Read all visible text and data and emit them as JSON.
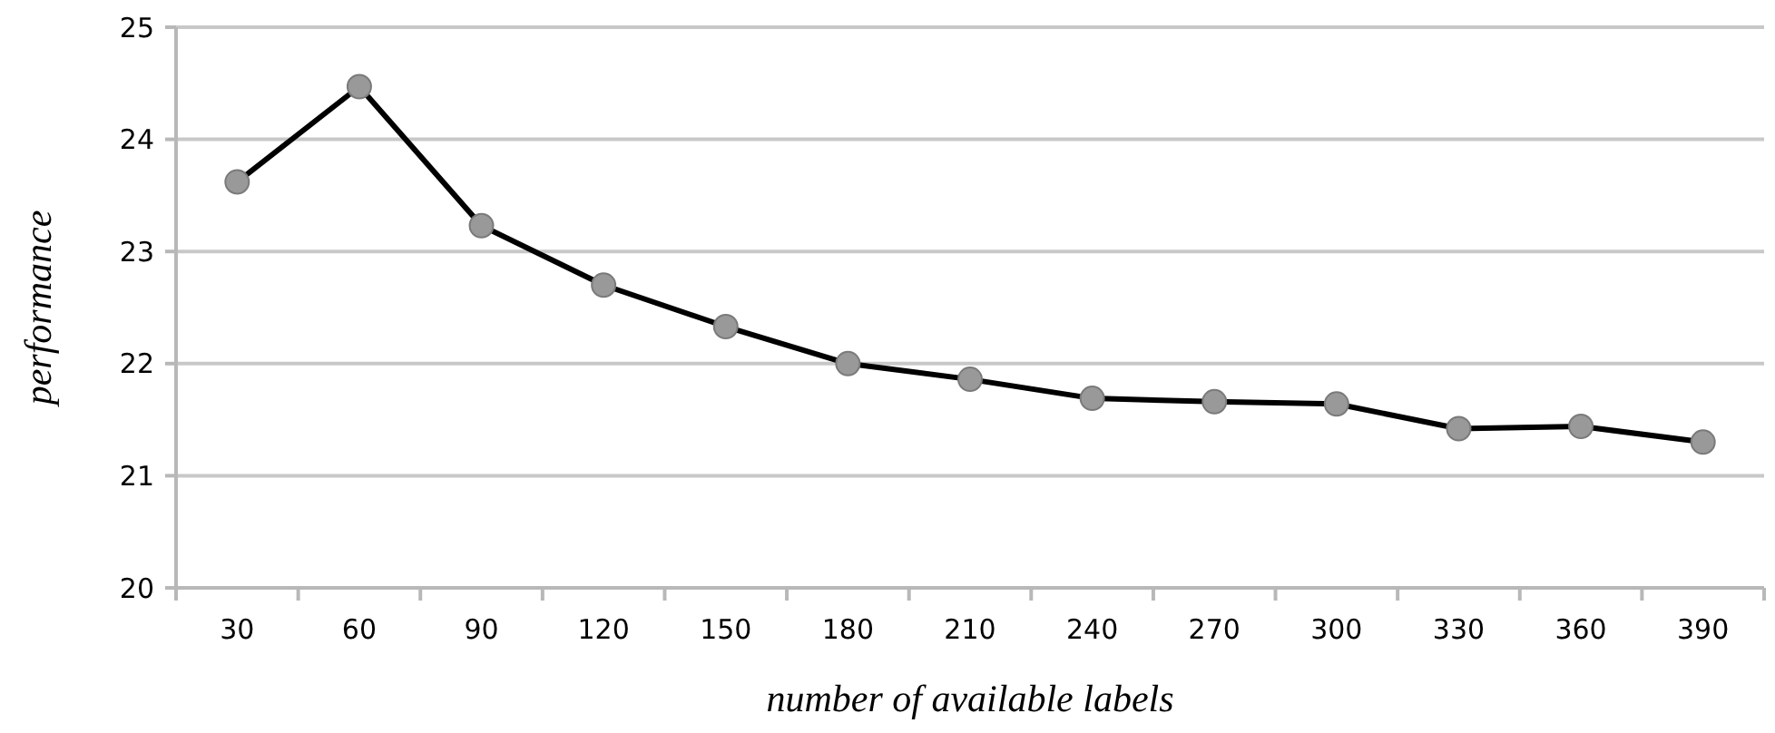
{
  "chart_data": {
    "type": "line",
    "xlabel": "number of available labels",
    "ylabel": "performance",
    "categories": [
      "30",
      "60",
      "90",
      "120",
      "150",
      "180",
      "210",
      "240",
      "270",
      "300",
      "330",
      "360",
      "390"
    ],
    "series": [
      {
        "color": "#000000",
        "values": [
          23.62,
          24.47,
          23.23,
          22.7,
          22.33,
          22.0,
          21.86,
          21.69,
          21.66,
          21.64,
          21.42,
          21.44,
          21.3
        ]
      }
    ],
    "ylim": [
      20,
      25
    ],
    "yticks": [
      20,
      21,
      22,
      23,
      24,
      25
    ],
    "grid": "y",
    "marker": "circle",
    "line_style": "solid"
  }
}
